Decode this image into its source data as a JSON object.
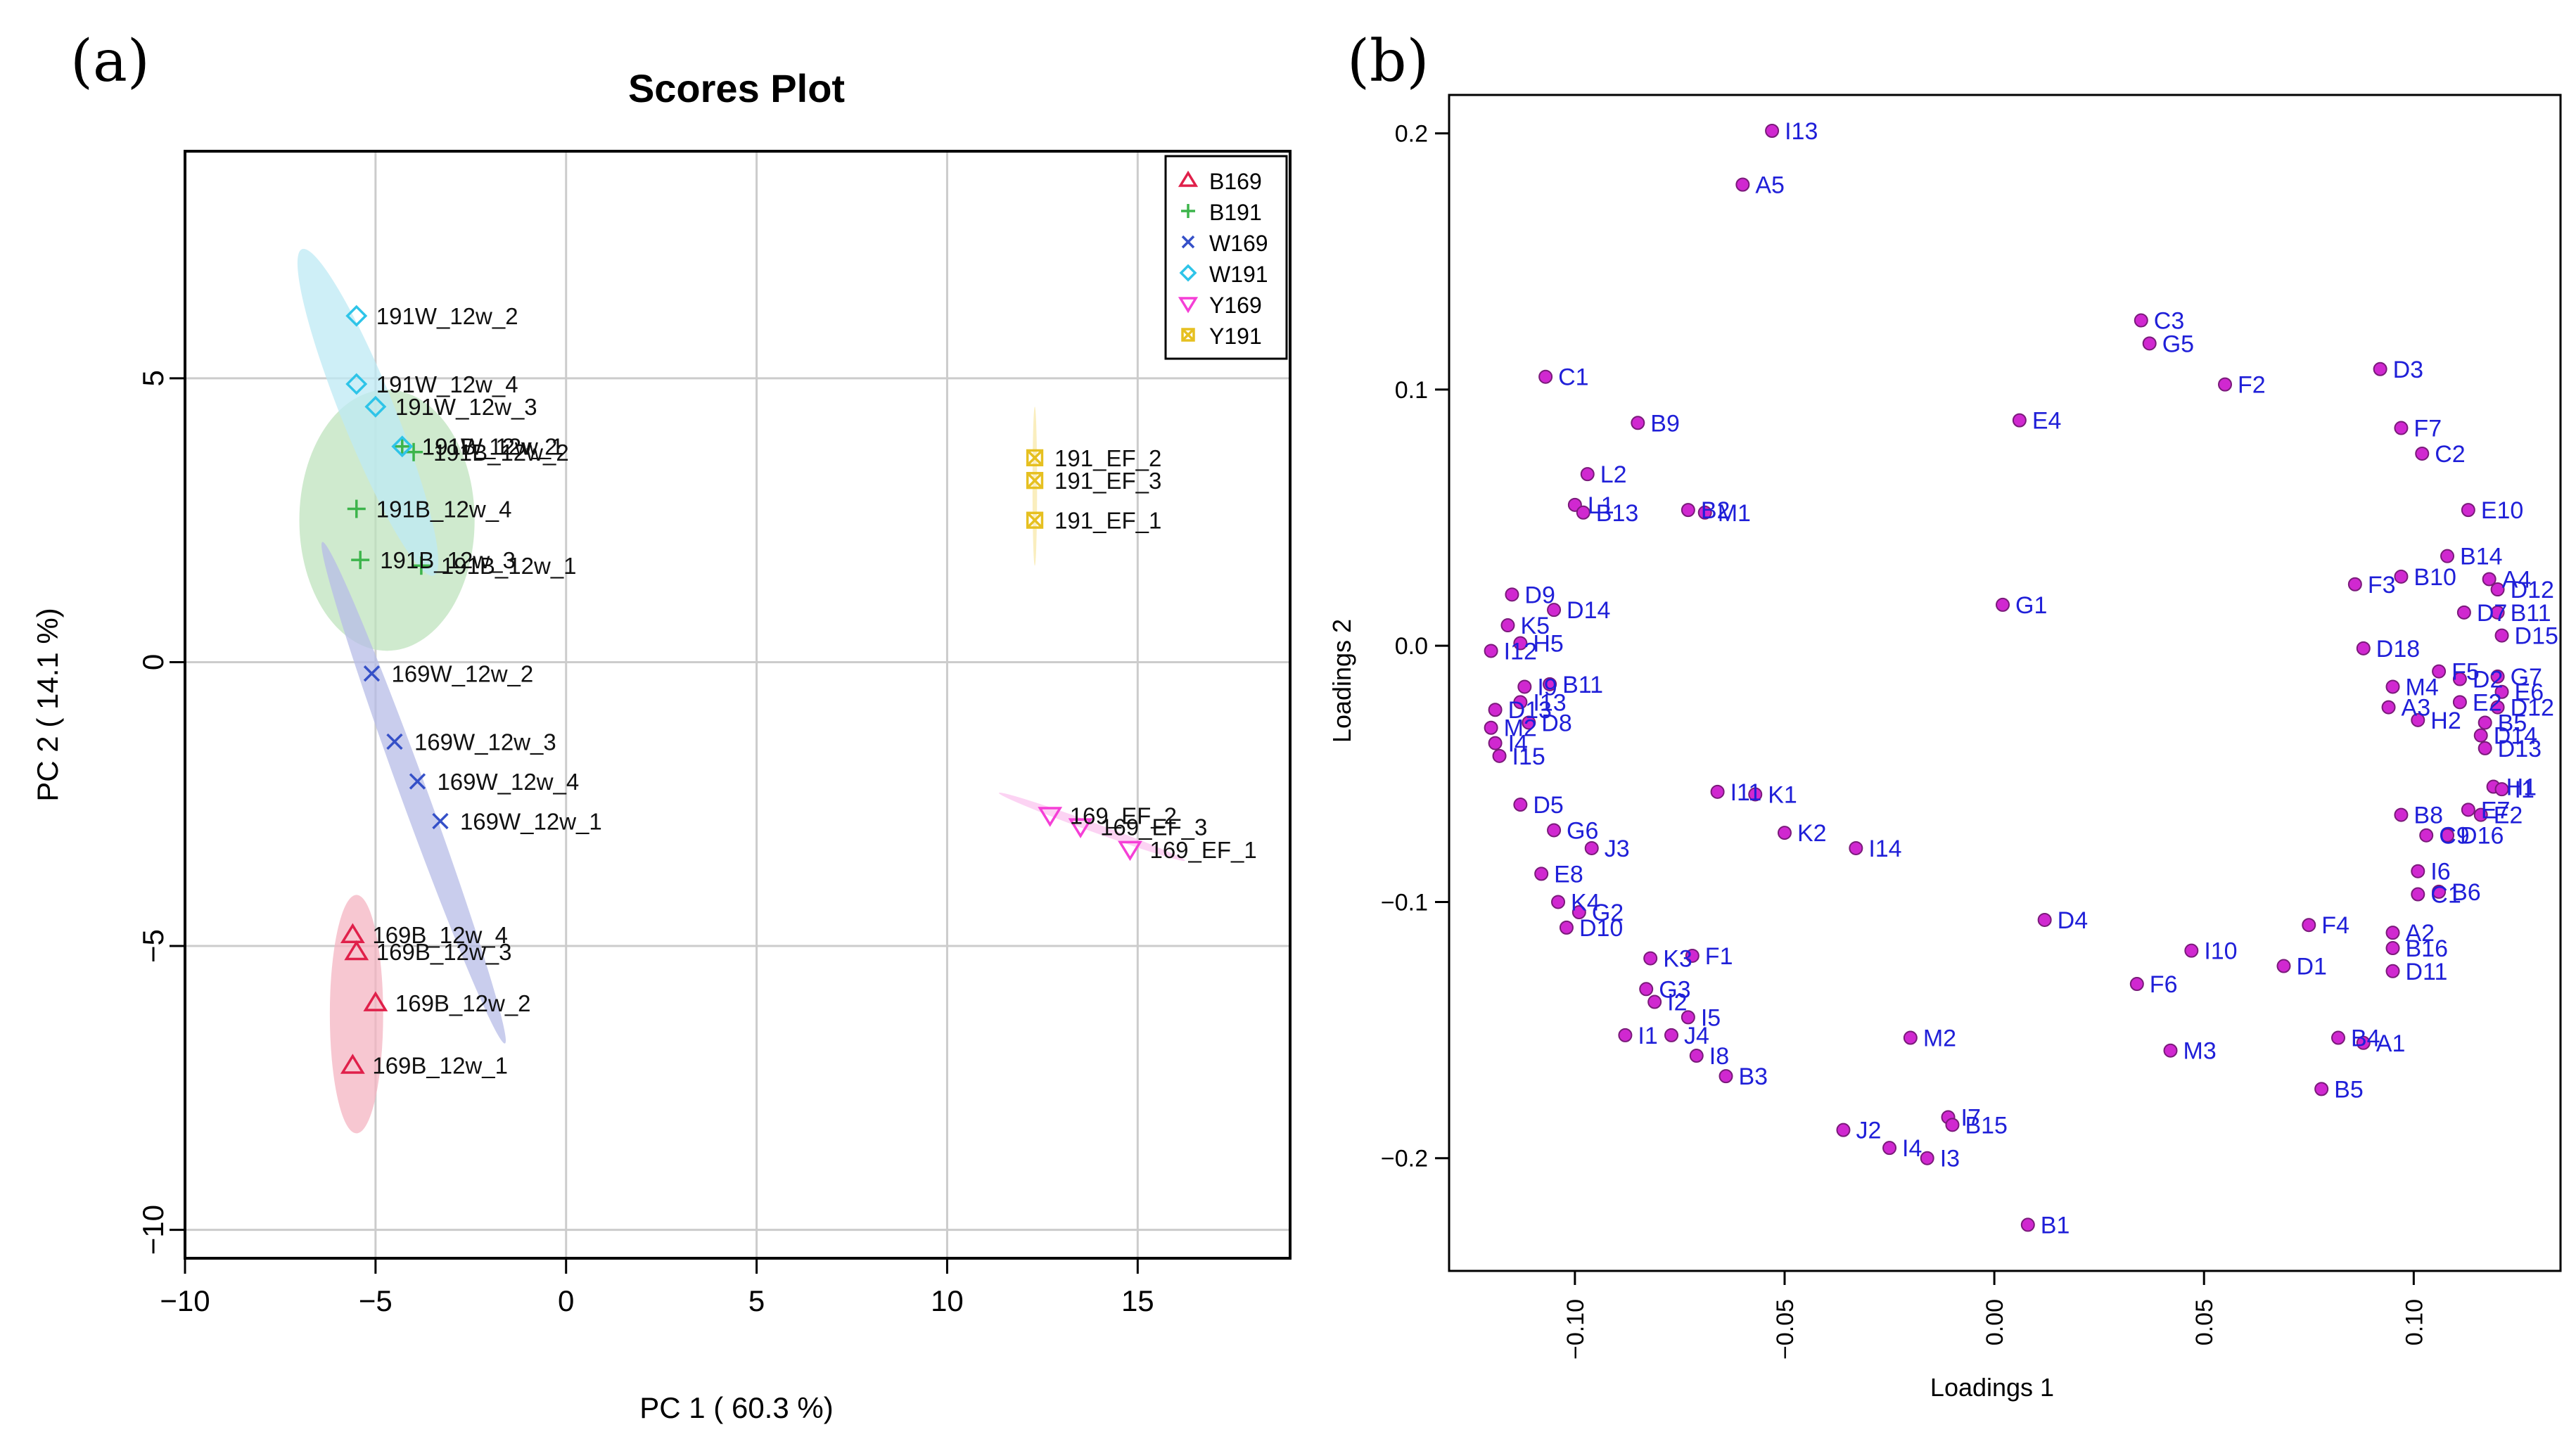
{
  "chart_data": [
    {
      "panel": "(a)",
      "type": "scatter",
      "title": "Scores Plot",
      "xlabel": "PC 1 ( 60.3 %)",
      "ylabel": "PC 2 ( 14.1 %)",
      "xlim": [
        -10,
        19
      ],
      "ylim": [
        -10.5,
        9
      ],
      "xticks": [
        -10,
        -5,
        0,
        5,
        10,
        15
      ],
      "xtick_labels": [
        "−10",
        "−5",
        "0",
        "5",
        "10",
        "15"
      ],
      "yticks": [
        -10,
        -5,
        0,
        5
      ],
      "ytick_labels": [
        "−10",
        "−5",
        "0",
        "5"
      ],
      "grid": true,
      "legend_position": "top-right",
      "series": [
        {
          "name": "B169",
          "marker": "triangle",
          "color": "#e0204a",
          "fill": "#f4b4c2",
          "points": [
            {
              "x": -5.6,
              "y": -4.8,
              "label": "169B_12w_4"
            },
            {
              "x": -5.5,
              "y": -5.1,
              "label": "169B_12w_3"
            },
            {
              "x": -5.0,
              "y": -6.0,
              "label": "169B_12w_2"
            },
            {
              "x": -5.6,
              "y": -7.1,
              "label": "169B_12w_1"
            }
          ],
          "ellipse": {
            "cx": -5.5,
            "cy": -6.2,
            "rx": 0.7,
            "ry": 2.1,
            "angle": 0
          }
        },
        {
          "name": "B191",
          "marker": "plus",
          "color": "#3cb44b",
          "fill": "#bfe3bd",
          "points": [
            {
              "x": -4.3,
              "y": 3.8,
              "label": "191B_12w_2"
            },
            {
              "x": -4.0,
              "y": 3.7,
              "label": "191B_12w_2"
            },
            {
              "x": -5.5,
              "y": 2.7,
              "label": "191B_12w_4"
            },
            {
              "x": -5.4,
              "y": 1.8,
              "label": "191B_12w_3"
            },
            {
              "x": -3.8,
              "y": 1.7,
              "label": "191B_12w_1"
            }
          ],
          "ellipse": {
            "cx": -4.7,
            "cy": 2.5,
            "rx": 2.3,
            "ry": 2.3,
            "angle": 0
          }
        },
        {
          "name": "W169",
          "marker": "x",
          "color": "#3550c8",
          "fill": "#b7bce7",
          "points": [
            {
              "x": -5.1,
              "y": -0.2,
              "label": "169W_12w_2"
            },
            {
              "x": -4.5,
              "y": -1.4,
              "label": "169W_12w_3"
            },
            {
              "x": -3.9,
              "y": -2.1,
              "label": "169W_12w_4"
            },
            {
              "x": -3.3,
              "y": -2.8,
              "label": "169W_12w_1"
            }
          ],
          "ellipse": {
            "cx": -4.0,
            "cy": -2.3,
            "rx": 0.35,
            "ry": 4.7,
            "angle": -20
          }
        },
        {
          "name": "W191",
          "marker": "diamond",
          "color": "#2ec4e8",
          "fill": "#bde9f4",
          "points": [
            {
              "x": -5.5,
              "y": 6.1,
              "label": "191W_12w_2"
            },
            {
              "x": -5.5,
              "y": 4.9,
              "label": "191W_12w_4"
            },
            {
              "x": -5.0,
              "y": 4.5,
              "label": "191W_12w_3"
            },
            {
              "x": -4.3,
              "y": 3.8,
              "label": "191W_12w_1"
            }
          ],
          "ellipse": {
            "cx": -5.2,
            "cy": 4.4,
            "rx": 0.7,
            "ry": 3.1,
            "angle": -22
          }
        },
        {
          "name": "Y169",
          "marker": "triangle-down",
          "color": "#f53fd6",
          "fill": "#fbc4ef",
          "points": [
            {
              "x": 12.7,
              "y": -2.7,
              "label": "169_EF_2"
            },
            {
              "x": 13.5,
              "y": -2.9,
              "label": "169_EF_3"
            },
            {
              "x": 14.8,
              "y": -3.3,
              "label": "169_EF_1"
            }
          ],
          "ellipse": {
            "cx": 13.8,
            "cy": -2.9,
            "rx": 2.6,
            "ry": 0.08,
            "angle": 20
          }
        },
        {
          "name": "Y191",
          "marker": "boxed-x",
          "color": "#e6c020",
          "fill": "#f8e8a8",
          "points": [
            {
              "x": 12.3,
              "y": 3.6,
              "label": "191_EF_2"
            },
            {
              "x": 12.3,
              "y": 3.2,
              "label": "191_EF_3"
            },
            {
              "x": 12.3,
              "y": 2.5,
              "label": "191_EF_1"
            }
          ],
          "ellipse": {
            "cx": 12.3,
            "cy": 3.1,
            "rx": 0.06,
            "ry": 1.4,
            "angle": 0
          }
        }
      ]
    },
    {
      "panel": "(b)",
      "type": "scatter",
      "title": "",
      "xlabel": "Loadings 1",
      "ylabel": "Loadings 2",
      "xlim": [
        -0.13,
        0.135
      ],
      "ylim": [
        -0.244,
        0.215
      ],
      "xticks": [
        -0.1,
        -0.05,
        0.0,
        0.05,
        0.1
      ],
      "xtick_labels": [
        "−0.10",
        "−0.05",
        "0.00",
        "0.05",
        "0.10"
      ],
      "yticks": [
        -0.2,
        -0.1,
        0.0,
        0.1,
        0.2
      ],
      "ytick_labels": [
        "−0.2",
        "−0.1",
        "0.0",
        "0.1",
        "0.2"
      ],
      "grid": false,
      "point_color": "#d028d0",
      "label_color": "#1f1fd8",
      "points": [
        {
          "label": "I13",
          "x": -0.053,
          "y": 0.201
        },
        {
          "label": "A5",
          "x": -0.06,
          "y": 0.18
        },
        {
          "label": "C3",
          "x": 0.035,
          "y": 0.127
        },
        {
          "label": "G5",
          "x": 0.037,
          "y": 0.118
        },
        {
          "label": "F2",
          "x": 0.055,
          "y": 0.102
        },
        {
          "label": "D3",
          "x": 0.092,
          "y": 0.108
        },
        {
          "label": "F7",
          "x": 0.097,
          "y": 0.085
        },
        {
          "label": "C2",
          "x": 0.102,
          "y": 0.075
        },
        {
          "label": "C1",
          "x": -0.107,
          "y": 0.105
        },
        {
          "label": "B9",
          "x": -0.085,
          "y": 0.087
        },
        {
          "label": "E4",
          "x": 0.006,
          "y": 0.088
        },
        {
          "label": "L2",
          "x": -0.097,
          "y": 0.067
        },
        {
          "label": "L1",
          "x": -0.1,
          "y": 0.055
        },
        {
          "label": "B13",
          "x": -0.098,
          "y": 0.052
        },
        {
          "label": "B2",
          "x": -0.073,
          "y": 0.053
        },
        {
          "label": "M1",
          "x": -0.069,
          "y": 0.052
        },
        {
          "label": "E10",
          "x": 0.113,
          "y": 0.053
        },
        {
          "label": "B14",
          "x": 0.108,
          "y": 0.035
        },
        {
          "label": "B10",
          "x": 0.097,
          "y": 0.027
        },
        {
          "label": "F3",
          "x": 0.086,
          "y": 0.024
        },
        {
          "label": "A4",
          "x": 0.118,
          "y": 0.026
        },
        {
          "label": "D12",
          "x": 0.12,
          "y": 0.022
        },
        {
          "label": "D7",
          "x": 0.112,
          "y": 0.013
        },
        {
          "label": "B11",
          "x": 0.12,
          "y": 0.013
        },
        {
          "label": "D15",
          "x": 0.121,
          "y": 0.004
        },
        {
          "label": "G1",
          "x": 0.002,
          "y": 0.016
        },
        {
          "label": "D9",
          "x": -0.115,
          "y": 0.02
        },
        {
          "label": "D14",
          "x": -0.105,
          "y": 0.014
        },
        {
          "label": "K5",
          "x": -0.116,
          "y": 0.008
        },
        {
          "label": "H5",
          "x": -0.113,
          "y": 0.001
        },
        {
          "label": "I12",
          "x": -0.12,
          "y": -0.002
        },
        {
          "label": "D18",
          "x": 0.088,
          "y": -0.001
        },
        {
          "label": "F5",
          "x": 0.106,
          "y": -0.01
        },
        {
          "label": "D2",
          "x": 0.111,
          "y": -0.013
        },
        {
          "label": "G7",
          "x": 0.12,
          "y": -0.012
        },
        {
          "label": "E6",
          "x": 0.121,
          "y": -0.018
        },
        {
          "label": "M4",
          "x": 0.095,
          "y": -0.016
        },
        {
          "label": "E2",
          "x": 0.111,
          "y": -0.022
        },
        {
          "label": "D12",
          "x": 0.12,
          "y": -0.024
        },
        {
          "label": "A3",
          "x": 0.094,
          "y": -0.024
        },
        {
          "label": "H2",
          "x": 0.101,
          "y": -0.029
        },
        {
          "label": "B5",
          "x": 0.117,
          "y": -0.03
        },
        {
          "label": "D14",
          "x": 0.116,
          "y": -0.035
        },
        {
          "label": "D13",
          "x": 0.117,
          "y": -0.04
        },
        {
          "label": "I9",
          "x": -0.112,
          "y": -0.016
        },
        {
          "label": "B11",
          "x": -0.106,
          "y": -0.015
        },
        {
          "label": "I13",
          "x": -0.113,
          "y": -0.022
        },
        {
          "label": "D13",
          "x": -0.119,
          "y": -0.025
        },
        {
          "label": "D8",
          "x": -0.111,
          "y": -0.03
        },
        {
          "label": "M2",
          "x": -0.12,
          "y": -0.032
        },
        {
          "label": "I4",
          "x": -0.119,
          "y": -0.038
        },
        {
          "label": "I15",
          "x": -0.118,
          "y": -0.043
        },
        {
          "label": "I11",
          "x": -0.066,
          "y": -0.057
        },
        {
          "label": "K1",
          "x": -0.057,
          "y": -0.058
        },
        {
          "label": "H1",
          "x": 0.119,
          "y": -0.055
        },
        {
          "label": "I1",
          "x": 0.121,
          "y": -0.056
        },
        {
          "label": "D5",
          "x": -0.113,
          "y": -0.062
        },
        {
          "label": "B8",
          "x": 0.097,
          "y": -0.066
        },
        {
          "label": "E7",
          "x": 0.113,
          "y": -0.064
        },
        {
          "label": "E2",
          "x": 0.116,
          "y": -0.066
        },
        {
          "label": "C9",
          "x": 0.103,
          "y": -0.074
        },
        {
          "label": "D16",
          "x": 0.108,
          "y": -0.074
        },
        {
          "label": "G6",
          "x": -0.105,
          "y": -0.072
        },
        {
          "label": "K2",
          "x": -0.05,
          "y": -0.073
        },
        {
          "label": "J3",
          "x": -0.096,
          "y": -0.079
        },
        {
          "label": "I14",
          "x": -0.033,
          "y": -0.079
        },
        {
          "label": "E8",
          "x": -0.108,
          "y": -0.089
        },
        {
          "label": "I6",
          "x": 0.101,
          "y": -0.088
        },
        {
          "label": "C1",
          "x": 0.101,
          "y": -0.097
        },
        {
          "label": "B6",
          "x": 0.106,
          "y": -0.096
        },
        {
          "label": "K4",
          "x": -0.104,
          "y": -0.1
        },
        {
          "label": "G2",
          "x": -0.099,
          "y": -0.104
        },
        {
          "label": "D10",
          "x": -0.102,
          "y": -0.11
        },
        {
          "label": "D4",
          "x": 0.012,
          "y": -0.107
        },
        {
          "label": "F4",
          "x": 0.075,
          "y": -0.109
        },
        {
          "label": "A2",
          "x": 0.095,
          "y": -0.112
        },
        {
          "label": "B16",
          "x": 0.095,
          "y": -0.118
        },
        {
          "label": "I10",
          "x": 0.047,
          "y": -0.119
        },
        {
          "label": "D1",
          "x": 0.069,
          "y": -0.125
        },
        {
          "label": "D11",
          "x": 0.095,
          "y": -0.127
        },
        {
          "label": "K3",
          "x": -0.082,
          "y": -0.122
        },
        {
          "label": "F1",
          "x": -0.072,
          "y": -0.121
        },
        {
          "label": "G3",
          "x": -0.083,
          "y": -0.134
        },
        {
          "label": "I2",
          "x": -0.081,
          "y": -0.139
        },
        {
          "label": "F6",
          "x": 0.034,
          "y": -0.132
        },
        {
          "label": "I5",
          "x": -0.073,
          "y": -0.145
        },
        {
          "label": "I1",
          "x": -0.088,
          "y": -0.152
        },
        {
          "label": "J4",
          "x": -0.077,
          "y": -0.152
        },
        {
          "label": "I8",
          "x": -0.071,
          "y": -0.16
        },
        {
          "label": "B3",
          "x": -0.064,
          "y": -0.168
        },
        {
          "label": "M2",
          "x": -0.02,
          "y": -0.153
        },
        {
          "label": "M3",
          "x": 0.042,
          "y": -0.158
        },
        {
          "label": "B4",
          "x": 0.082,
          "y": -0.153
        },
        {
          "label": "A1",
          "x": 0.088,
          "y": -0.155
        },
        {
          "label": "B5",
          "x": 0.078,
          "y": -0.173
        },
        {
          "label": "I7",
          "x": -0.011,
          "y": -0.184
        },
        {
          "label": "B15",
          "x": -0.01,
          "y": -0.187
        },
        {
          "label": "J2",
          "x": -0.036,
          "y": -0.189
        },
        {
          "label": "I4",
          "x": -0.025,
          "y": -0.196
        },
        {
          "label": "I3",
          "x": -0.016,
          "y": -0.2
        },
        {
          "label": "B1",
          "x": 0.008,
          "y": -0.226
        }
      ]
    }
  ]
}
